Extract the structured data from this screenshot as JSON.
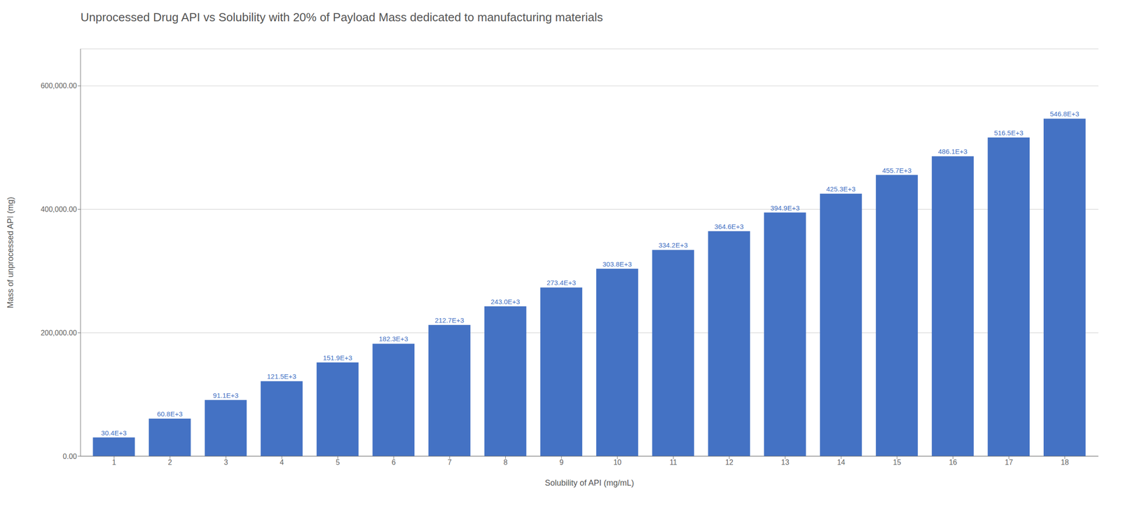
{
  "chart_data": {
    "type": "bar",
    "title": "Unprocessed Drug API vs Solubility with 20% of Payload Mass dedicated to manufacturing materials",
    "xlabel": "Solubility of API  (mg/mL)",
    "ylabel": "Mass of unprocessed API (mg)",
    "x": [
      1,
      2,
      3,
      4,
      5,
      6,
      7,
      8,
      9,
      10,
      11,
      12,
      13,
      14,
      15,
      16,
      17,
      18
    ],
    "values": [
      30400,
      60800,
      91100,
      121500,
      151900,
      182300,
      212700,
      243000,
      273400,
      303800,
      334200,
      364600,
      394900,
      425300,
      455700,
      486100,
      516500,
      546800
    ],
    "value_labels": [
      "30.4E+3",
      "60.8E+3",
      "91.1E+3",
      "121.5E+3",
      "151.9E+3",
      "182.3E+3",
      "212.7E+3",
      "243.0E+3",
      "273.4E+3",
      "303.8E+3",
      "334.2E+3",
      "364.6E+3",
      "394.9E+3",
      "425.3E+3",
      "455.7E+3",
      "486.1E+3",
      "516.5E+3",
      "546.8E+3"
    ],
    "data_labels": true,
    "color": "#4472C4",
    "xlim": [
      0.4,
      18.6
    ],
    "xticks": [
      1,
      2,
      3,
      4,
      5,
      6,
      7,
      8,
      9,
      10,
      11,
      12,
      13,
      14,
      15,
      16,
      17,
      18
    ],
    "ylim": [
      0,
      660000
    ],
    "yticks": [
      {
        "value": 0,
        "label": "0.00"
      },
      {
        "value": 200000,
        "label": "200,000.00"
      },
      {
        "value": 400000,
        "label": "400,000.00"
      },
      {
        "value": 600000,
        "label": "600,000.00"
      }
    ],
    "grid": true
  }
}
